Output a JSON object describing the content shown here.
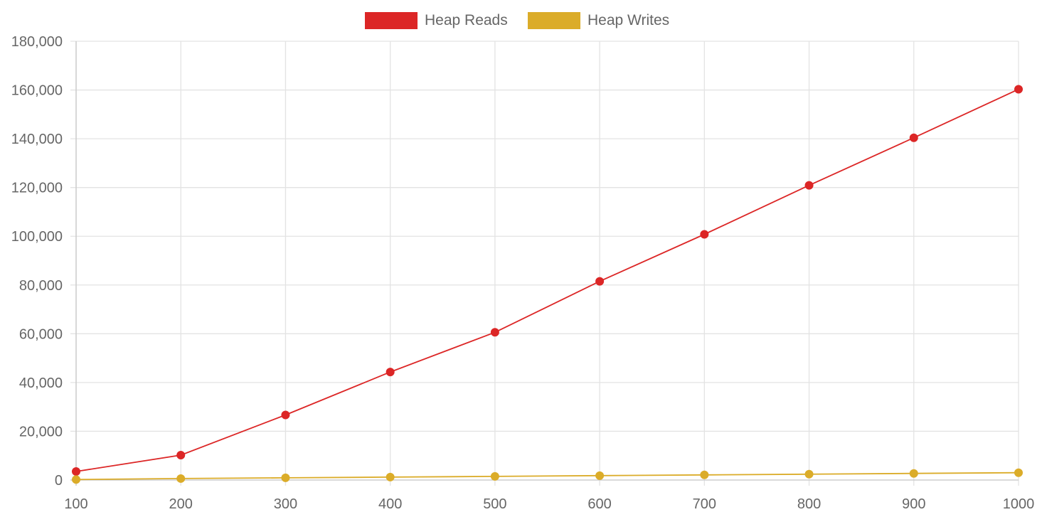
{
  "chart_data": {
    "type": "line",
    "x": [
      100,
      200,
      300,
      400,
      500,
      600,
      700,
      800,
      900,
      1000
    ],
    "x_tick_labels": [
      "100",
      "200",
      "300",
      "400",
      "500",
      "600",
      "700",
      "800",
      "900",
      "1000"
    ],
    "ylim": [
      0,
      180000
    ],
    "y_tick_labels": [
      "0",
      "20,000",
      "40,000",
      "60,000",
      "80,000",
      "100,000",
      "120,000",
      "140,000",
      "160,000",
      "180,000"
    ],
    "grid": true,
    "legend_position": "top",
    "series": [
      {
        "name": "Heap Reads",
        "color": "#dc2626",
        "values": [
          3500,
          10200,
          26700,
          44300,
          60600,
          81500,
          100800,
          120900,
          140400,
          160300
        ]
      },
      {
        "name": "Heap Writes",
        "color": "#dbac29",
        "values": [
          200,
          600,
          900,
          1200,
          1500,
          1800,
          2100,
          2400,
          2700,
          3000
        ]
      }
    ]
  }
}
